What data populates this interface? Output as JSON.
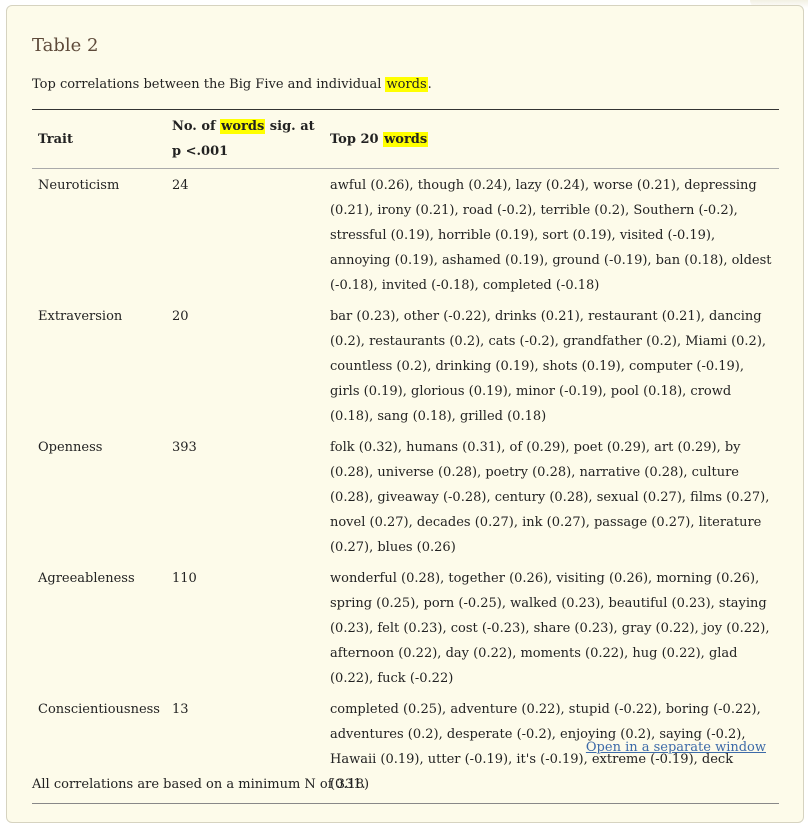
{
  "table_label": "Table 2",
  "caption": {
    "before": "Top correlations between the Big Five and individual ",
    "highlight": "words",
    "after": "."
  },
  "headers": {
    "trait": "Trait",
    "count_before": "No. of ",
    "count_highlight": "words",
    "count_after": " sig. at p <.001",
    "top_before": "Top 20 ",
    "top_highlight": "words"
  },
  "rows": [
    {
      "trait": "Neuroticism",
      "count": "24",
      "words": "awful (0.26), though (0.24), lazy (0.24), worse (0.21), depressing (0.21), irony (0.21), road (-0.2), terrible (0.2), Southern (-0.2), stressful (0.19), horrible (0.19), sort (0.19), visited (-0.19), annoying (0.19), ashamed (0.19), ground (-0.19), ban (0.18), oldest (-0.18), invited (-0.18), completed (-0.18)"
    },
    {
      "trait": "Extraversion",
      "count": "20",
      "words": "bar (0.23), other (-0.22), drinks (0.21), restaurant (0.21), dancing (0.2), restaurants (0.2), cats (-0.2), grandfather (0.2), Miami (0.2), countless (0.2), drinking (0.19), shots (0.19), computer (-0.19), girls (0.19), glorious (0.19), minor (-0.19), pool (0.18), crowd (0.18), sang (0.18), grilled (0.18)"
    },
    {
      "trait": "Openness",
      "count": "393",
      "words": "folk (0.32), humans (0.31), of (0.29), poet (0.29), art (0.29), by (0.28), universe (0.28), poetry (0.28), narrative (0.28), culture (0.28), giveaway (-0.28), century (0.28), sexual (0.27), films (0.27), novel (0.27), decades (0.27), ink (0.27), passage (0.27), literature (0.27), blues (0.26)"
    },
    {
      "trait": "Agreeableness",
      "count": "110",
      "words": "wonderful (0.28), together (0.26), visiting (0.26), morning (0.26), spring (0.25), porn (-0.25), walked (0.23), beautiful (0.23), staying (0.23), felt (0.23), cost (-0.23), share (0.23), gray (0.22), joy (0.22), afternoon (0.22), day (0.22), moments (0.22), hug (0.22), glad (0.22), fuck (-0.22)"
    },
    {
      "trait": "Conscientiousness",
      "count": "13",
      "words": "completed (0.25), adventure (0.22), stupid (-0.22), boring (-0.22), adventures (0.2), desperate (-0.2), enjoying (0.2), saying (-0.2), Hawaii (0.19), utter (-0.19), it's (-0.19), extreme (-0.19), deck (0.18)"
    }
  ],
  "open_window_link": "Open in a separate window",
  "footnote": "All correlations are based on a minimum N of 331.",
  "colors": {
    "panel_bg": "#fdfbea",
    "highlight": "#ffff00",
    "title": "#5e4a3a",
    "link": "#3d6aa8"
  }
}
